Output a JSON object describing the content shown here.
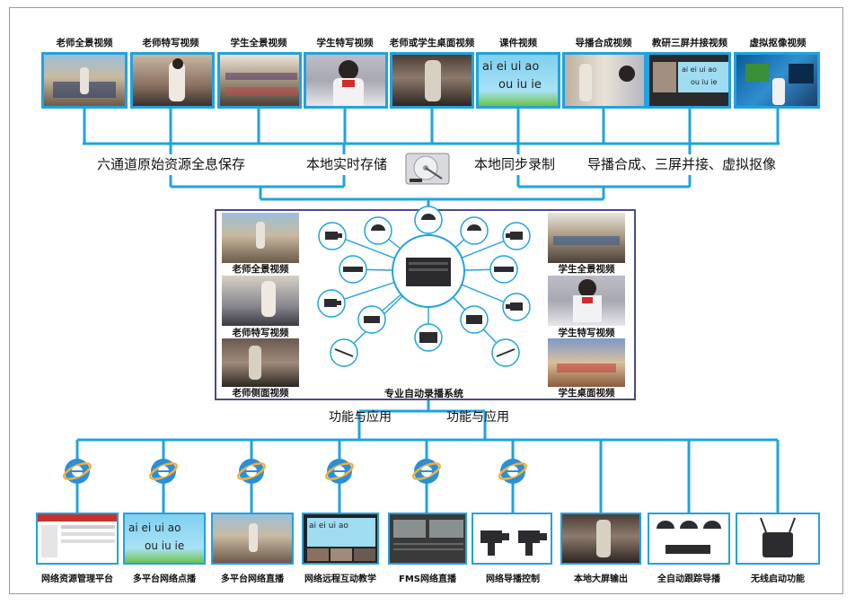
{
  "top_videos": [
    "老师全景视频",
    "老师特写视频",
    "学生全景视频",
    "学生特写视频",
    "老师或学生桌面视频",
    "课件视频",
    "导播合成视频",
    "教研三屏并接视频",
    "虚拟抠像视频"
  ],
  "courseware_text": {
    "line1": "ai ei ui ao",
    "line2": "ou iu ie"
  },
  "storage_labels": {
    "left1": "六通道原始资源全息保存",
    "left2": "本地实时存储",
    "right1": "本地同步录制",
    "right2": "导播合成、三屏并接、虚拟抠像"
  },
  "center": {
    "left_captions": [
      "老师全景视频",
      "老师特写视频",
      "老师侧面视频"
    ],
    "right_captions": [
      "学生全景视频",
      "学生特写视频",
      "学生桌面视频"
    ],
    "system_label": "专业自动录播系统"
  },
  "function_labels": [
    "功能与应用",
    "功能与应用"
  ],
  "bottom_items": [
    "网络资源管理平台",
    "多平台网络点播",
    "多平台网络直播",
    "网络远程互动教学",
    "FMS网络直播",
    "网络导播控制",
    "本地大屏输出",
    "全自动跟踪导播",
    "无线启动功能"
  ],
  "colors": {
    "line_blue": "#1fa3df",
    "box_border": "#4a4a8a"
  }
}
